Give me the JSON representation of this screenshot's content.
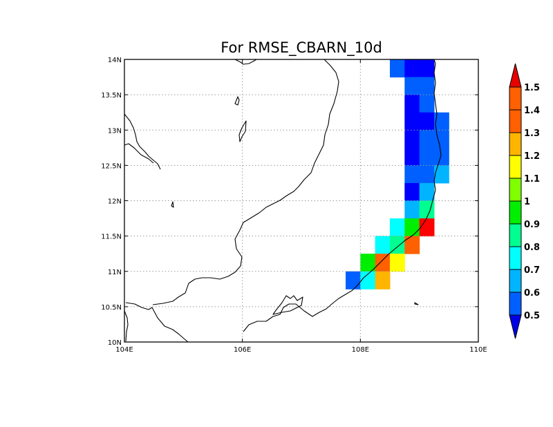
{
  "title": "For RMSE_CBARN_10d",
  "map": {
    "lon_range": [
      104,
      110
    ],
    "lat_range": [
      10,
      14
    ],
    "x_ticks": [
      "104E",
      "106E",
      "108E",
      "110E"
    ],
    "y_ticks": [
      "10N",
      "10.5N",
      "11N",
      "11.5N",
      "12N",
      "12.5N",
      "13N",
      "13.5N",
      "14N"
    ],
    "grid_lons": [
      106,
      108
    ],
    "grid_lats": [
      10.5,
      11,
      11.5,
      12,
      12.5,
      13,
      13.5
    ]
  },
  "colorbar": {
    "labels": [
      "0.5",
      "0.6",
      "0.7",
      "0.8",
      "0.9",
      "1",
      "1.1",
      "1.2",
      "1.3",
      "1.4",
      "1.5"
    ],
    "colors": [
      "#0000ff",
      "#0060ff",
      "#00b4ff",
      "#00ffff",
      "#00ff90",
      "#00ee00",
      "#80ff00",
      "#ffff00",
      "#ffb400",
      "#ff6000",
      "#ff0000"
    ],
    "under_color": "#0000e6",
    "over_color": "#e60000"
  },
  "chart_data": {
    "type": "heatmap",
    "title": "For RMSE_CBARN_10d",
    "xlim": [
      104,
      110
    ],
    "ylim": [
      10,
      14
    ],
    "cell_lon": 0.25,
    "cell_lat": 0.25,
    "cells": [
      {
        "lon": 108.625,
        "lat": 13.875,
        "v": 0.65
      },
      {
        "lon": 108.875,
        "lat": 13.875,
        "v": 0.45
      },
      {
        "lon": 109.125,
        "lat": 13.875,
        "v": 0.55
      },
      {
        "lon": 108.875,
        "lat": 13.625,
        "v": 0.65
      },
      {
        "lon": 109.125,
        "lat": 13.625,
        "v": 0.65
      },
      {
        "lon": 108.875,
        "lat": 13.375,
        "v": 0.45
      },
      {
        "lon": 109.125,
        "lat": 13.375,
        "v": 0.65
      },
      {
        "lon": 108.875,
        "lat": 13.125,
        "v": 0.45
      },
      {
        "lon": 109.125,
        "lat": 13.125,
        "v": 0.55
      },
      {
        "lon": 109.375,
        "lat": 13.125,
        "v": 0.65
      },
      {
        "lon": 108.875,
        "lat": 12.875,
        "v": 0.45
      },
      {
        "lon": 109.125,
        "lat": 12.875,
        "v": 0.65
      },
      {
        "lon": 109.375,
        "lat": 12.875,
        "v": 0.65
      },
      {
        "lon": 108.875,
        "lat": 12.625,
        "v": 0.55
      },
      {
        "lon": 109.125,
        "lat": 12.625,
        "v": 0.65
      },
      {
        "lon": 109.375,
        "lat": 12.625,
        "v": 0.65
      },
      {
        "lon": 108.875,
        "lat": 12.375,
        "v": 0.65
      },
      {
        "lon": 109.125,
        "lat": 12.375,
        "v": 0.65
      },
      {
        "lon": 109.375,
        "lat": 12.375,
        "v": 0.75
      },
      {
        "lon": 108.875,
        "lat": 12.125,
        "v": 0.55
      },
      {
        "lon": 109.125,
        "lat": 12.125,
        "v": 0.75
      },
      {
        "lon": 108.875,
        "lat": 11.875,
        "v": 0.75
      },
      {
        "lon": 109.125,
        "lat": 11.875,
        "v": 0.95
      },
      {
        "lon": 108.625,
        "lat": 11.625,
        "v": 0.85
      },
      {
        "lon": 108.875,
        "lat": 11.625,
        "v": 1.05
      },
      {
        "lon": 109.125,
        "lat": 11.625,
        "v": 1.55
      },
      {
        "lon": 108.375,
        "lat": 11.375,
        "v": 0.85
      },
      {
        "lon": 108.625,
        "lat": 11.375,
        "v": 0.95
      },
      {
        "lon": 108.875,
        "lat": 11.375,
        "v": 1.45
      },
      {
        "lon": 108.125,
        "lat": 11.125,
        "v": 1.05
      },
      {
        "lon": 108.375,
        "lat": 11.125,
        "v": 1.45
      },
      {
        "lon": 108.625,
        "lat": 11.125,
        "v": 1.25
      },
      {
        "lon": 107.875,
        "lat": 10.875,
        "v": 0.65
      },
      {
        "lon": 108.125,
        "lat": 10.875,
        "v": 0.85
      },
      {
        "lon": 108.375,
        "lat": 10.875,
        "v": 1.35
      }
    ]
  }
}
